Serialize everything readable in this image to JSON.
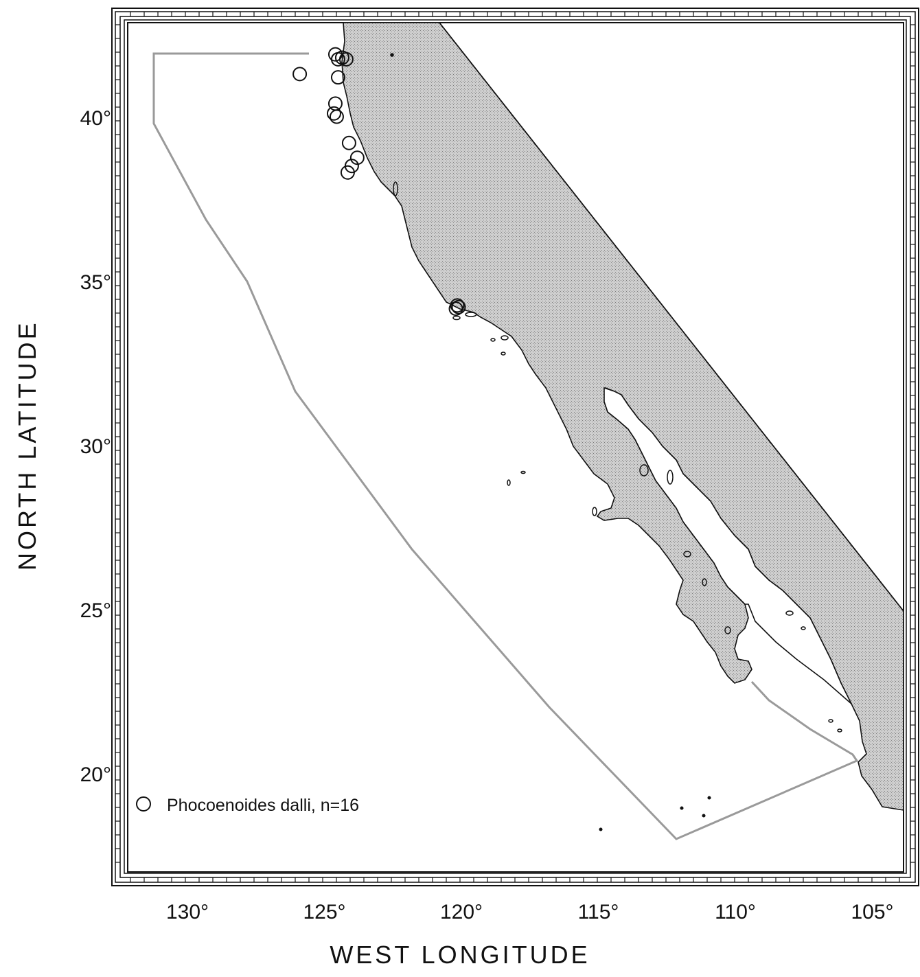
{
  "map": {
    "xlabel": "WEST LONGITUDE",
    "ylabel": "NORTH LATITUDE",
    "x_ticks": [
      {
        "value": 130,
        "label": "130°"
      },
      {
        "value": 125,
        "label": "125°"
      },
      {
        "value": 120,
        "label": "120°"
      },
      {
        "value": 115,
        "label": "115°"
      },
      {
        "value": 110,
        "label": "110°"
      },
      {
        "value": 105,
        "label": "105°"
      }
    ],
    "y_ticks": [
      {
        "value": 40,
        "label": "40°"
      },
      {
        "value": 35,
        "label": "35°"
      },
      {
        "value": 30,
        "label": "30°"
      },
      {
        "value": 25,
        "label": "25°"
      },
      {
        "value": 20,
        "label": "20°"
      }
    ],
    "legend": {
      "symbol": "open-circle",
      "label": "Phocoenoides dalli, n=16"
    },
    "land_color": "#bdbdbd",
    "study_area_color": "#9a9a9a",
    "sightings": [
      {
        "lon": 125.9,
        "lat": 41.3
      },
      {
        "lon": 124.6,
        "lat": 41.9
      },
      {
        "lon": 124.5,
        "lat": 41.75
      },
      {
        "lon": 124.35,
        "lat": 41.8
      },
      {
        "lon": 124.2,
        "lat": 41.75
      },
      {
        "lon": 124.5,
        "lat": 41.2
      },
      {
        "lon": 124.6,
        "lat": 40.4
      },
      {
        "lon": 124.65,
        "lat": 40.1
      },
      {
        "lon": 124.55,
        "lat": 40.0
      },
      {
        "lon": 124.1,
        "lat": 39.2
      },
      {
        "lon": 123.8,
        "lat": 38.75
      },
      {
        "lon": 124.0,
        "lat": 38.5
      },
      {
        "lon": 124.15,
        "lat": 38.3
      },
      {
        "lon": 120.15,
        "lat": 34.25
      },
      {
        "lon": 120.1,
        "lat": 34.2
      },
      {
        "lon": 120.2,
        "lat": 34.15
      }
    ]
  }
}
